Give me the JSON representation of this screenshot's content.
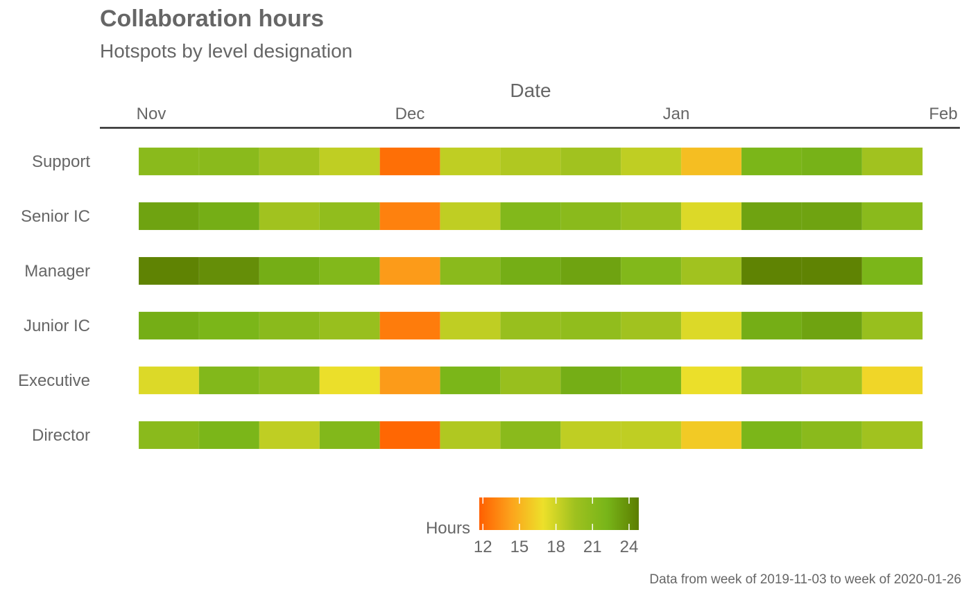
{
  "title": "Collaboration hours",
  "subtitle": "Hotspots by level designation",
  "caption": "Data from week of 2019-11-03 to week of 2020-01-26",
  "chart_data": {
    "type": "heatmap",
    "xlabel": "Date",
    "x_tick_labels": [
      "Nov",
      "Dec",
      "Jan",
      "Feb"
    ],
    "x": [
      "2019-11-03",
      "2019-11-10",
      "2019-11-17",
      "2019-11-24",
      "2019-12-01",
      "2019-12-08",
      "2019-12-15",
      "2019-12-22",
      "2019-12-29",
      "2020-01-05",
      "2020-01-12",
      "2020-01-19",
      "2020-01-26"
    ],
    "y": [
      "Support",
      "Senior IC",
      "Manager",
      "Junior IC",
      "Executive",
      "Director"
    ],
    "values": [
      [
        21.0,
        21.0,
        19.5,
        18.5,
        12.3,
        18.5,
        19.0,
        19.5,
        18.5,
        15.5,
        22.0,
        22.3,
        19.5
      ],
      [
        23.0,
        22.5,
        19.5,
        20.5,
        13.0,
        18.5,
        21.5,
        21.0,
        20.0,
        17.5,
        23.0,
        23.0,
        21.0
      ],
      [
        24.5,
        24.0,
        22.5,
        21.5,
        14.0,
        21.0,
        22.5,
        23.0,
        21.5,
        19.5,
        24.5,
        24.5,
        22.0
      ],
      [
        22.5,
        22.0,
        21.0,
        20.0,
        12.8,
        18.5,
        20.0,
        20.5,
        19.5,
        17.5,
        22.5,
        23.0,
        20.0
      ],
      [
        17.5,
        21.5,
        20.5,
        17.0,
        14.0,
        22.0,
        20.0,
        22.5,
        22.0,
        17.0,
        20.5,
        19.5,
        16.5
      ],
      [
        21.0,
        22.0,
        18.5,
        21.5,
        12.0,
        19.0,
        21.0,
        18.5,
        18.5,
        16.0,
        22.0,
        21.0,
        19.5
      ]
    ],
    "legend": {
      "title": "Hours",
      "ticks": [
        "12",
        "15",
        "18",
        "21",
        "24"
      ],
      "tick_values": [
        12,
        15,
        18,
        21,
        24
      ],
      "range": [
        11.7,
        24.8
      ],
      "colors": [
        "#ff5f00",
        "#fca31c",
        "#ede02a",
        "#9fc11f",
        "#78b519",
        "#5c7d00"
      ]
    }
  }
}
